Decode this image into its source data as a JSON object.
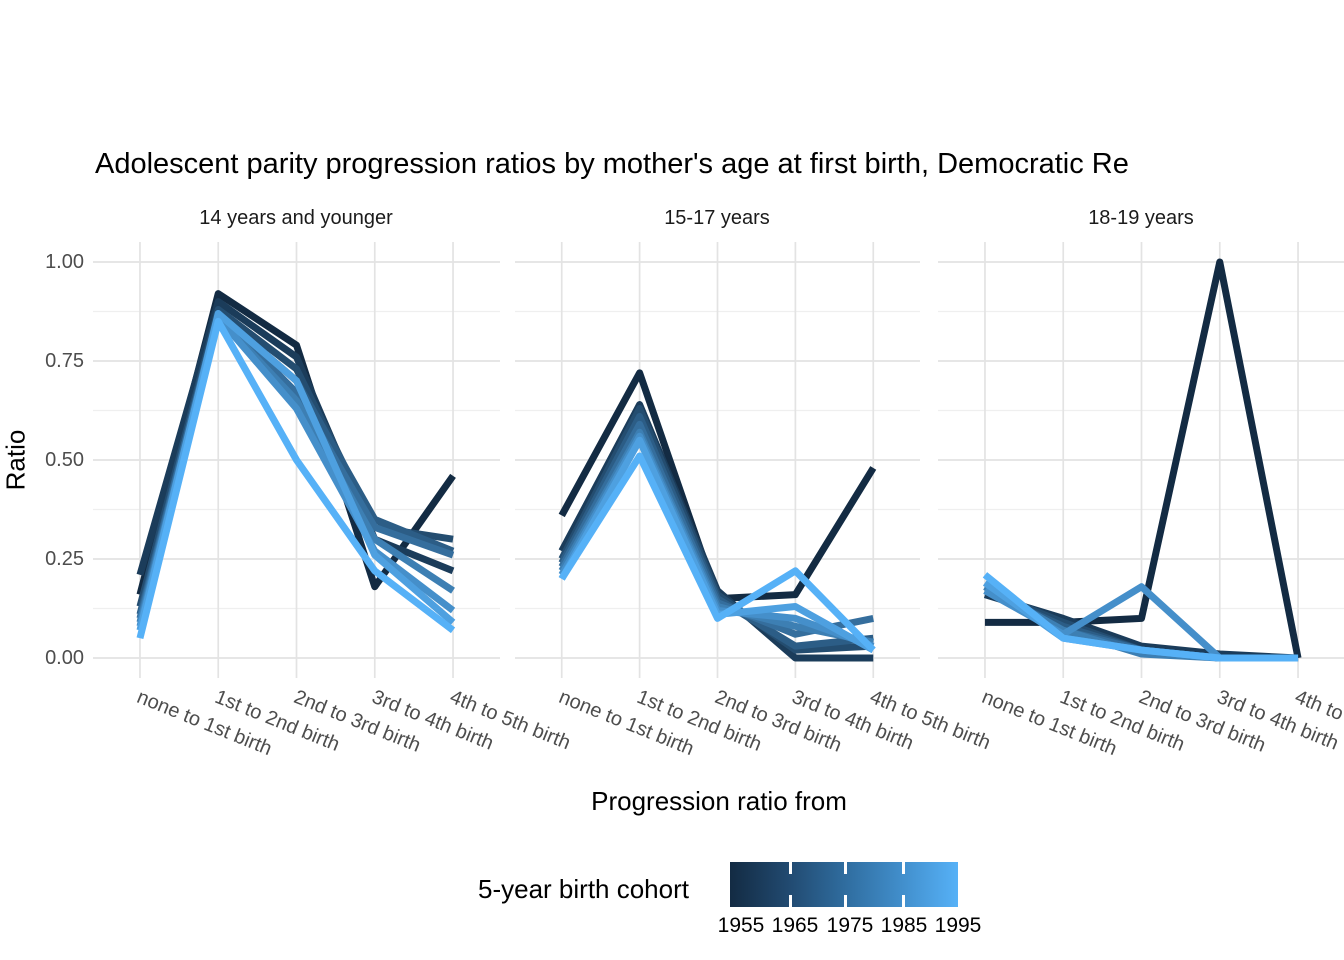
{
  "title": "Adolescent parity progression ratios by mother's age at first birth,  Democratic Re",
  "y_axis": {
    "label": "Ratio",
    "ticks": [
      "1.00",
      "0.75",
      "0.50",
      "0.25",
      "0.00"
    ],
    "tick_values": [
      1.0,
      0.75,
      0.5,
      0.25,
      0.0
    ]
  },
  "x_axis": {
    "label": "Progression ratio from",
    "categories": [
      "none to 1st birth",
      "1st to 2nd birth",
      "2nd to 3rd birth",
      "3rd to 4th birth",
      "4th to 5th birth"
    ]
  },
  "facets": [
    {
      "label": "14 years and younger"
    },
    {
      "label": "15-17 years"
    },
    {
      "label": "18-19 years"
    }
  ],
  "legend": {
    "title": "5-year birth cohort",
    "ticks": [
      "1955",
      "1965",
      "1975",
      "1985",
      "1995"
    ],
    "gradient_low": "#132B43",
    "gradient_high": "#56B1F7"
  },
  "colors": {
    "grid_major": "#e3e3e3",
    "grid_minor": "#efefef",
    "text_gray": "#4d4d4d"
  },
  "chart_data": {
    "type": "line",
    "title": "Adolescent parity progression ratios by mother's age at first birth,  Democratic Re",
    "xlabel": "Progression ratio from",
    "ylabel": "Ratio",
    "ylim": [
      0,
      1
    ],
    "yticks": [
      0.0,
      0.25,
      0.5,
      0.75,
      1.0
    ],
    "grid": "on",
    "legend_position": "bottom",
    "legend_type": "continuous-colorbar",
    "legend_title": "5-year birth cohort",
    "categories": [
      "none to 1st birth",
      "1st to 2nd birth",
      "2nd to 3rd birth",
      "3rd to 4th birth",
      "4th to 5th birth"
    ],
    "cohort_colors": {
      "1955": "#132B43",
      "1960": "#1B3C5A",
      "1965": "#244D70",
      "1970": "#2C5D86",
      "1975": "#356E9D",
      "1980": "#3D7FB3",
      "1985": "#458FCA",
      "1990": "#4EA0E0",
      "1995": "#56B1F7"
    },
    "facets": [
      {
        "name": "14 years and younger",
        "series": [
          {
            "name": "1955",
            "values": [
              0.16,
              0.92,
              0.79,
              0.18,
              0.46
            ]
          },
          {
            "name": "1960",
            "values": [
              0.21,
              0.9,
              0.76,
              0.3,
              0.22
            ]
          },
          {
            "name": "1965",
            "values": [
              0.13,
              0.88,
              0.73,
              0.33,
              0.3
            ]
          },
          {
            "name": "1970",
            "values": [
              0.11,
              0.87,
              0.7,
              0.35,
              0.27
            ]
          },
          {
            "name": "1975",
            "values": [
              0.1,
              0.87,
              0.67,
              0.33,
              0.26
            ]
          },
          {
            "name": "1980",
            "values": [
              0.09,
              0.86,
              0.65,
              0.3,
              0.17
            ]
          },
          {
            "name": "1985",
            "values": [
              0.08,
              0.86,
              0.63,
              0.27,
              0.12
            ]
          },
          {
            "name": "1990",
            "values": [
              0.07,
              0.87,
              0.7,
              0.26,
              0.09
            ]
          },
          {
            "name": "1995",
            "values": [
              0.05,
              0.85,
              0.5,
              0.22,
              0.07
            ]
          }
        ]
      },
      {
        "name": "15-17 years",
        "series": [
          {
            "name": "1955",
            "values": [
              0.36,
              0.72,
              0.15,
              0.16,
              0.48
            ]
          },
          {
            "name": "1960",
            "values": [
              0.27,
              0.64,
              0.17,
              0.0,
              0.0
            ]
          },
          {
            "name": "1965",
            "values": [
              0.25,
              0.63,
              0.16,
              0.02,
              0.03
            ]
          },
          {
            "name": "1970",
            "values": [
              0.24,
              0.61,
              0.15,
              0.03,
              0.05
            ]
          },
          {
            "name": "1975",
            "values": [
              0.23,
              0.59,
              0.14,
              0.06,
              0.1
            ]
          },
          {
            "name": "1980",
            "values": [
              0.22,
              0.57,
              0.13,
              0.08,
              0.04
            ]
          },
          {
            "name": "1985",
            "values": [
              0.21,
              0.56,
              0.12,
              0.1,
              0.03
            ]
          },
          {
            "name": "1990",
            "values": [
              0.2,
              0.55,
              0.11,
              0.13,
              0.02
            ]
          },
          {
            "name": "1995",
            "values": [
              0.2,
              0.51,
              0.1,
              0.22,
              0.02
            ]
          }
        ]
      },
      {
        "name": "18-19 years",
        "series": [
          {
            "name": "1955",
            "values": [
              0.09,
              0.09,
              0.1,
              1.0,
              0.0
            ]
          },
          {
            "name": "1960",
            "values": [
              0.16,
              0.1,
              0.03,
              0.01,
              0.0
            ]
          },
          {
            "name": "1965",
            "values": [
              0.17,
              0.09,
              0.02,
              0.0,
              0.0
            ]
          },
          {
            "name": "1970",
            "values": [
              0.17,
              0.08,
              0.02,
              0.0,
              0.0
            ]
          },
          {
            "name": "1975",
            "values": [
              0.18,
              0.07,
              0.02,
              0.0,
              0.0
            ]
          },
          {
            "name": "1980",
            "values": [
              0.18,
              0.07,
              0.01,
              0.0,
              0.0
            ]
          },
          {
            "name": "1985",
            "values": [
              0.17,
              0.06,
              0.18,
              0.0,
              0.0
            ]
          },
          {
            "name": "1990",
            "values": [
              0.19,
              0.05,
              0.02,
              0.0,
              0.0
            ]
          },
          {
            "name": "1995",
            "values": [
              0.21,
              0.05,
              0.02,
              0.0,
              0.0
            ]
          }
        ]
      }
    ]
  }
}
